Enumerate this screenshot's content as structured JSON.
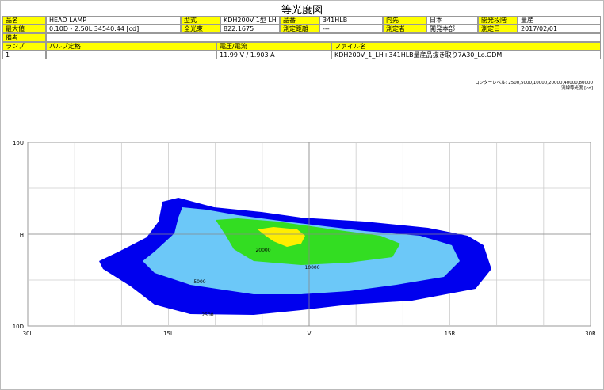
{
  "title": "等光度図",
  "table": {
    "rows": [
      [
        "品名",
        "HEAD LAMP",
        "型式",
        "KDH200V 1型 LH",
        "品番",
        "341HLB",
        "向先",
        "日本",
        "開発段階",
        "量産"
      ],
      [
        "最大値",
        "0.10D - 2.50L   34540.44 [cd]",
        "全光束",
        "822.1675",
        "測定距離",
        "---",
        "測定者",
        "開発本部",
        "測定日",
        "2017/02/01"
      ],
      [
        "備考"
      ],
      [
        "ランプ",
        "バルブ定格",
        "電圧/電流",
        "ファイル名"
      ],
      [
        "1",
        "11.99 V / 1.903 A",
        "KDH200V_1_LH+341HLB量産品抜き取り7A30_Lo.GDM"
      ]
    ]
  },
  "plot": {
    "contour_note": [
      "コンターレベル: 2500,5000,10000,20000,40000,80000",
      "流線等光度 [cd]"
    ],
    "y_labels": [
      "10U",
      "H",
      "10D"
    ],
    "x_labels": [
      "30L",
      "15L",
      "V",
      "15R",
      "30R"
    ],
    "contour_labels": [
      "20000",
      "10000",
      "5000",
      "2500"
    ]
  }
}
